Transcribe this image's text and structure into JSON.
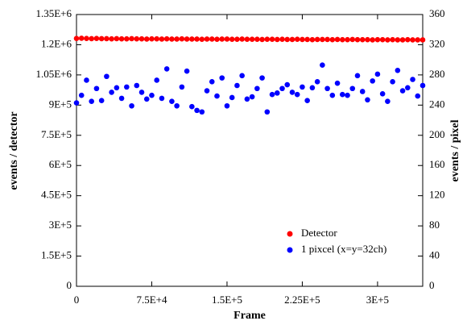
{
  "chart_data": {
    "type": "scatter",
    "x_label": "Frame",
    "y_label": "events / detector",
    "y2_label": "events / pixel",
    "x": [
      0,
      5000,
      10000,
      15000,
      20000,
      25000,
      30000,
      35000,
      40000,
      45000,
      50000,
      55000,
      60000,
      65000,
      70000,
      75000,
      80000,
      85000,
      90000,
      95000,
      100000,
      105000,
      110000,
      115000,
      120000,
      125000,
      130000,
      135000,
      140000,
      145000,
      150000,
      155000,
      160000,
      165000,
      170000,
      175000,
      180000,
      185000,
      190000,
      195000,
      200000,
      205000,
      210000,
      215000,
      220000,
      225000,
      230000,
      235000,
      240000,
      245000,
      250000,
      255000,
      260000,
      265000,
      270000,
      275000,
      280000,
      285000,
      290000,
      295000,
      300000,
      305000,
      310000,
      315000,
      320000,
      325000,
      330000,
      335000,
      340000,
      345000
    ],
    "series": [
      {
        "name": "Detector",
        "color": "#ff0000",
        "values": [
          1231000,
          1232000,
          1231000,
          1230000,
          1231000,
          1230000,
          1230000,
          1229000,
          1230000,
          1229000,
          1229000,
          1230000,
          1229000,
          1229000,
          1228000,
          1229000,
          1229000,
          1228000,
          1229000,
          1228000,
          1228000,
          1229000,
          1228000,
          1228000,
          1228000,
          1227000,
          1228000,
          1228000,
          1227000,
          1228000,
          1228000,
          1227000,
          1227000,
          1228000,
          1227000,
          1227000,
          1227000,
          1226000,
          1227000,
          1227000,
          1226000,
          1227000,
          1226000,
          1226000,
          1227000,
          1226000,
          1226000,
          1225000,
          1226000,
          1226000,
          1226000,
          1225000,
          1226000,
          1225000,
          1225000,
          1226000,
          1225000,
          1225000,
          1225000,
          1224000,
          1225000,
          1225000,
          1224000,
          1225000,
          1224000,
          1224000,
          1225000,
          1224000,
          1224000,
          1224000
        ]
      },
      {
        "name": "1 pixcel (x=y=32ch)",
        "color": "#0000ff",
        "axis": "y2",
        "values": [
          243,
          253,
          273,
          245,
          262,
          246,
          278,
          257,
          263,
          249,
          264,
          239,
          266,
          257,
          248,
          253,
          273,
          249,
          288,
          245,
          239,
          264,
          285,
          238,
          233,
          231,
          259,
          271,
          252,
          276,
          239,
          250,
          266,
          279,
          248,
          251,
          262,
          276,
          231,
          254,
          256,
          262,
          267,
          257,
          254,
          264,
          246,
          263,
          271,
          293,
          262,
          253,
          269,
          254,
          253,
          262,
          279,
          258,
          247,
          272,
          281,
          255,
          245,
          271,
          286,
          259,
          263,
          274,
          252,
          266
        ]
      }
    ],
    "xlim": [
      0,
      345000
    ],
    "xticks": [
      0,
      {
        "value": 75000,
        "label": "7.5E+4"
      },
      {
        "value": 150000,
        "label": "1.5E+5"
      },
      {
        "value": 225000,
        "label": "2.25E+5"
      },
      {
        "value": 300000,
        "label": "3E+5"
      }
    ],
    "ylim": [
      0,
      1350000
    ],
    "yticks": [
      0,
      {
        "value": 150000,
        "label": "1.5E+5"
      },
      {
        "value": 300000,
        "label": "3E+5"
      },
      {
        "value": 450000,
        "label": "4.5E+5"
      },
      {
        "value": 600000,
        "label": "6E+5"
      },
      {
        "value": 750000,
        "label": "7.5E+5"
      },
      {
        "value": 900000,
        "label": "9E+5"
      },
      {
        "value": 1050000,
        "label": "1.05E+6"
      },
      {
        "value": 1200000,
        "label": "1.2E+6"
      },
      {
        "value": 1350000,
        "label": "1.35E+6"
      }
    ],
    "y2lim": [
      0,
      360
    ],
    "y2ticks": [
      0,
      40,
      80,
      120,
      160,
      200,
      240,
      280,
      320,
      360
    ],
    "legend": "lower right"
  }
}
